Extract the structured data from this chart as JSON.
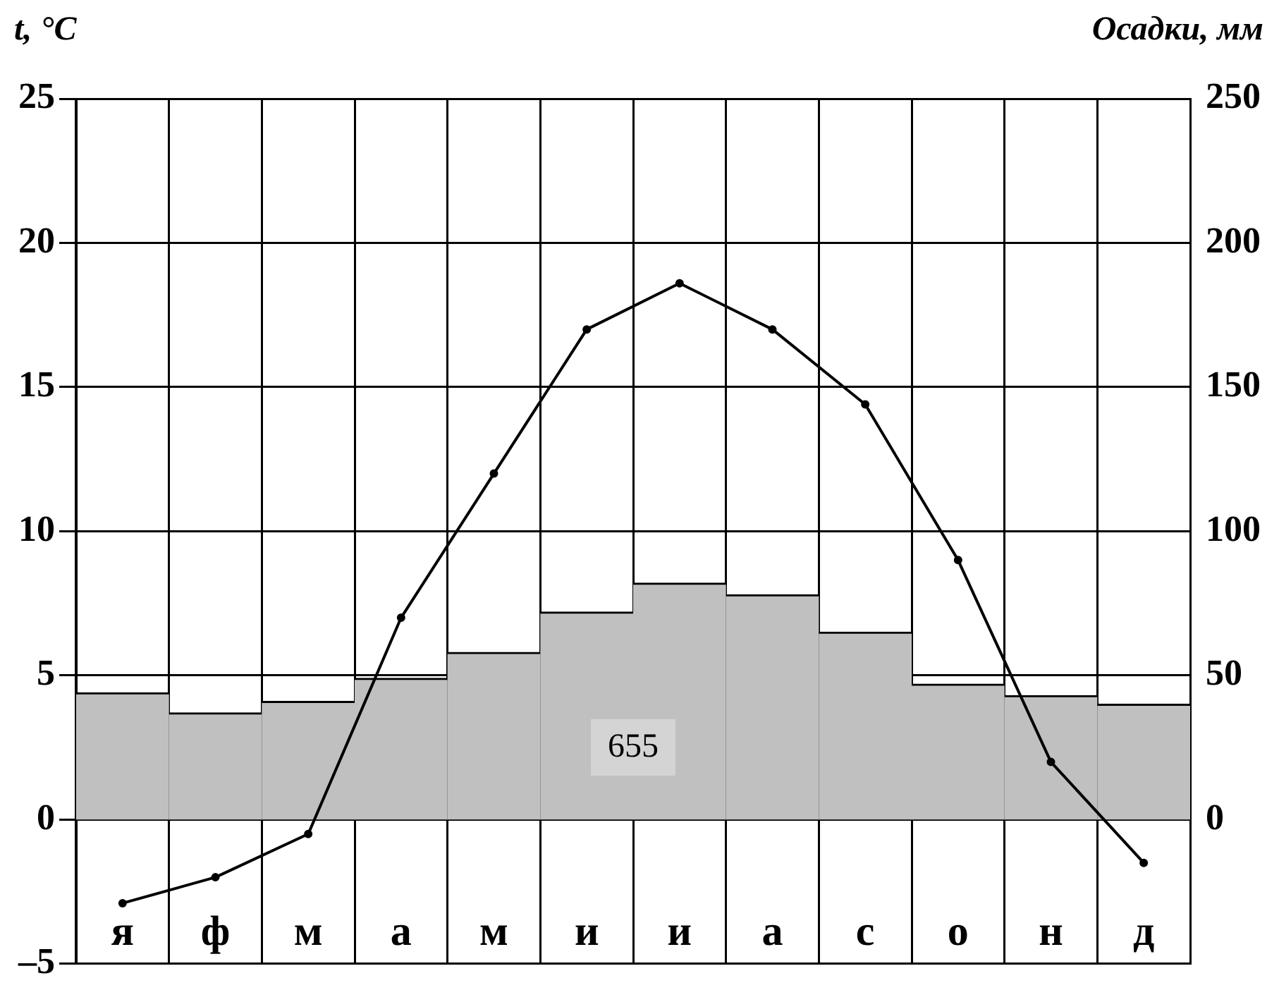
{
  "chart_data": {
    "type": "bar",
    "xlabel": null,
    "ylabel": "t, °C",
    "y2label": "Осадки, мм",
    "categories": [
      "я",
      "ф",
      "м",
      "а",
      "м",
      "и",
      "и",
      "а",
      "с",
      "о",
      "н",
      "д"
    ],
    "series": [
      {
        "axis": "y2",
        "color": "#c0c0c0",
        "values": [
          44,
          37,
          41,
          49,
          58,
          72,
          82,
          78,
          65,
          47,
          43,
          40
        ]
      },
      {
        "type": "line",
        "axis": "y",
        "color": "#000000",
        "values": [
          -2.9,
          -2,
          -0.5,
          7,
          12,
          17,
          18.6,
          17,
          14.4,
          9,
          2,
          -1.5
        ]
      }
    ],
    "ylim": [
      -5,
      25
    ],
    "yticks": [
      {
        "value": -5,
        "label": "–5"
      },
      0,
      5,
      10,
      15,
      20,
      25
    ],
    "y2lim": [
      -50,
      250
    ],
    "y2ticks": [
      0,
      50,
      100,
      150,
      200,
      250
    ],
    "annotations": [
      "655"
    ],
    "grid": true,
    "legend": false,
    "marker": "circle"
  }
}
